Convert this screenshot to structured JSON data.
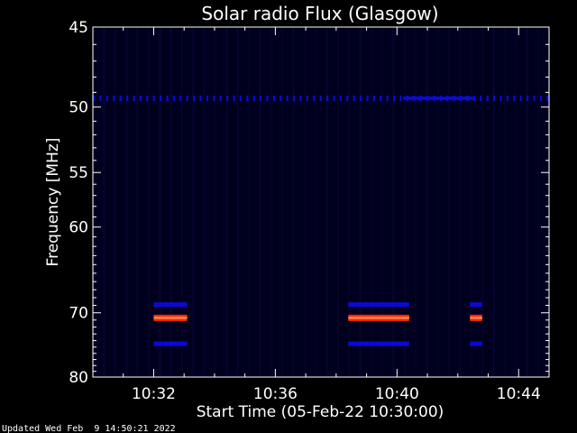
{
  "chart_data": {
    "type": "heatmap",
    "title": "Solar radio Flux (Glasgow)",
    "xlabel": "Start Time (05-Feb-22 10:30:00)",
    "ylabel": "Frequency [MHz]",
    "x_ticks": [
      "10:32",
      "10:36",
      "10:40",
      "10:44"
    ],
    "x_tick_minutes": [
      2,
      6,
      10,
      14
    ],
    "xlim_minutes": [
      0,
      15
    ],
    "y_ticks": [
      45,
      50,
      55,
      60,
      70,
      80
    ],
    "ylim": [
      45,
      80
    ],
    "y_scale": "reciprocal",
    "grid": false,
    "colors": {
      "background": "#000000",
      "plot_background": "#00001e",
      "low": "#0a0ad2",
      "high": "#ff2a00",
      "peak": "#ff9a6a"
    },
    "features": [
      {
        "name": "horizontal band",
        "freq": 49.4,
        "t_start": 0,
        "t_end": 15,
        "intensity": "low",
        "style": "dotted"
      },
      {
        "name": "upper line",
        "freq": 68.9,
        "segments": [
          [
            2,
            3.1
          ],
          [
            8.4,
            10.4
          ],
          [
            12.4,
            12.8
          ]
        ],
        "intensity": "low"
      },
      {
        "name": "main line",
        "freq": 70.7,
        "segments": [
          [
            2,
            3.1
          ],
          [
            8.4,
            10.4
          ],
          [
            12.4,
            12.8
          ]
        ],
        "intensity": "high"
      },
      {
        "name": "lower line",
        "freq": 74.5,
        "segments": [
          [
            2,
            3.1
          ],
          [
            8.4,
            10.4
          ],
          [
            12.4,
            12.8
          ]
        ],
        "intensity": "low"
      }
    ]
  },
  "footer": {
    "updated": "Updated Wed Feb  9 14:50:21 2022"
  }
}
